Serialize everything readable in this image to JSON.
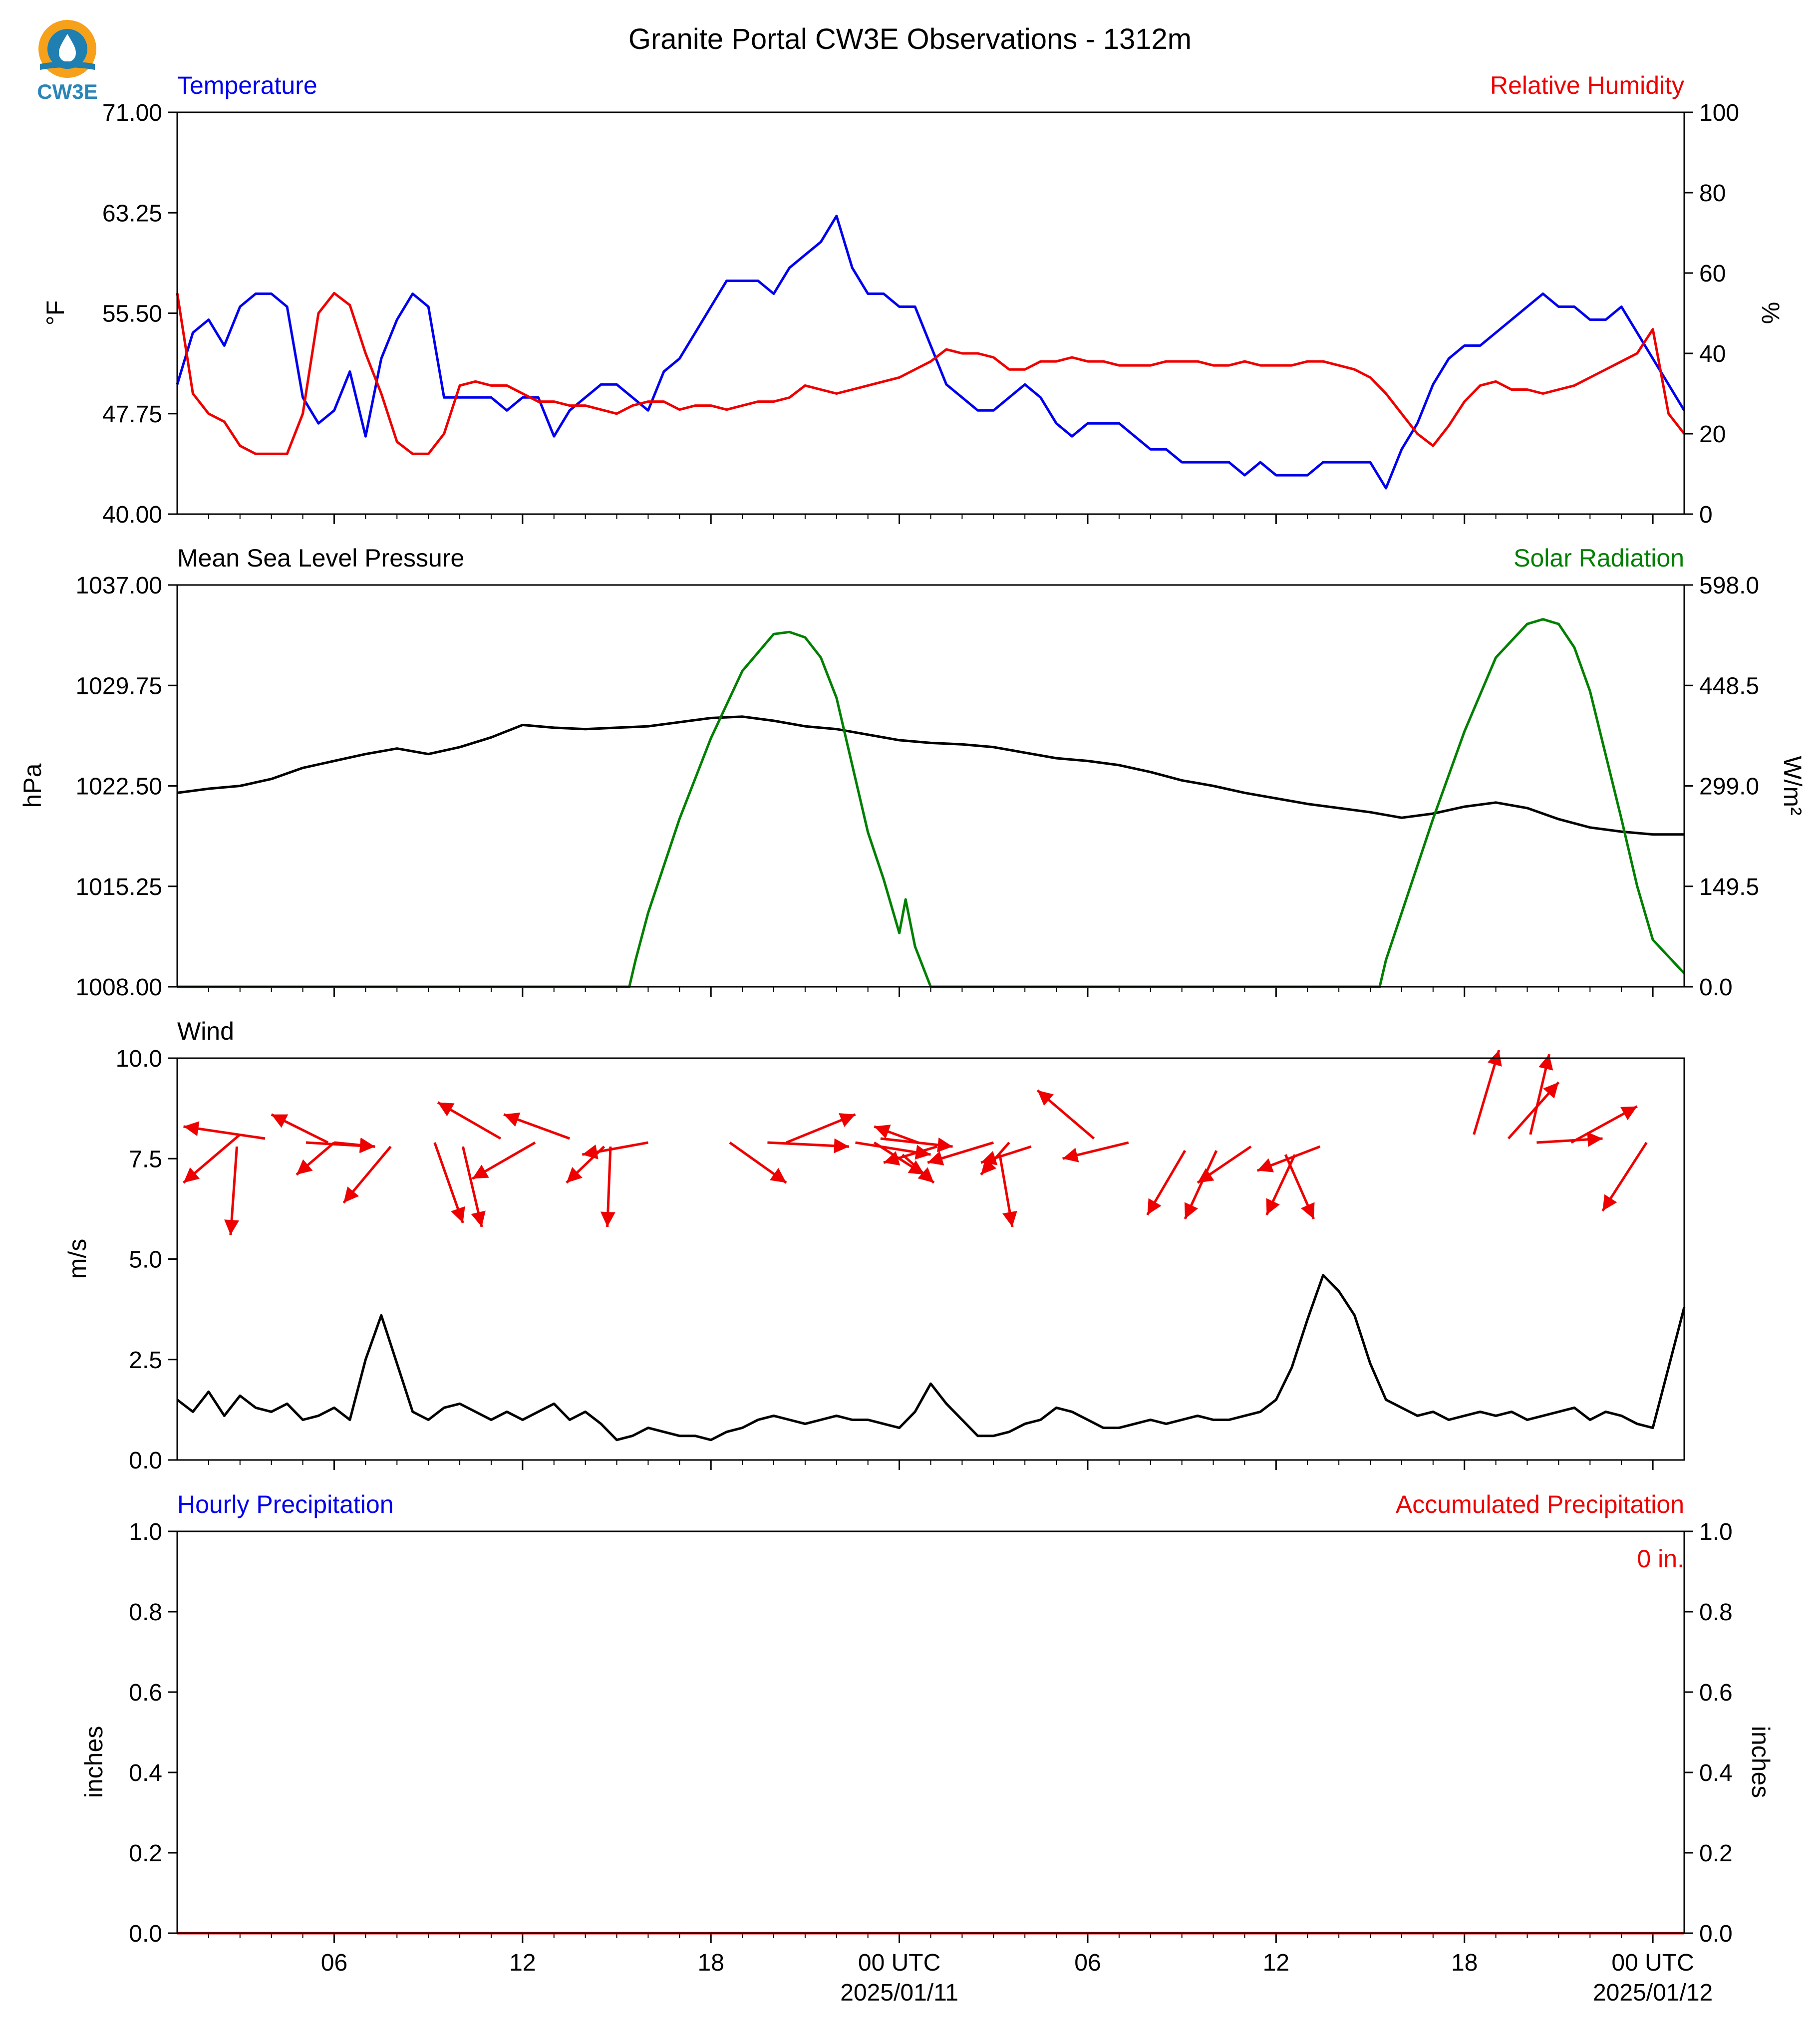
{
  "title": "Granite Portal CW3E Observations - 1312m",
  "logo": {
    "text": "CW3E",
    "icon": "cw3e-logo-icon",
    "colors": {
      "sun": "#f7a11a",
      "water": "#1f7fb0",
      "text": "#2a86b8"
    }
  },
  "chart_data": [
    {
      "type": "line",
      "id": "temp_rh",
      "x_unit": "hours since 2025/01/10 01 UTC",
      "x": [
        0,
        0.5,
        1,
        1.5,
        2,
        2.5,
        3,
        3.5,
        4,
        4.5,
        5,
        5.5,
        6,
        6.5,
        7,
        7.5,
        8,
        8.5,
        9,
        9.5,
        10,
        10.5,
        11,
        11.5,
        12,
        12.5,
        13,
        13.5,
        14,
        14.5,
        15,
        15.5,
        16,
        16.5,
        17,
        17.5,
        18,
        18.5,
        19,
        19.5,
        20,
        20.5,
        21,
        21.5,
        22,
        22.5,
        23,
        23.5,
        24,
        24.5,
        25,
        25.5,
        26,
        26.5,
        27,
        27.5,
        28,
        28.5,
        29,
        29.5,
        30,
        30.5,
        31,
        31.5,
        32,
        32.5,
        33,
        33.5,
        34,
        34.5,
        35,
        35.5,
        36,
        36.5,
        37,
        37.5,
        38,
        38.5,
        39,
        39.5,
        40,
        40.5,
        41,
        41.5,
        42,
        42.5,
        43,
        43.5,
        44,
        44.5,
        45,
        45.5,
        46,
        46.5,
        47,
        47.5,
        48
      ],
      "left_title": "Temperature",
      "right_title": "Relative Humidity",
      "ylabel_left": "°F",
      "ylabel_right": "%",
      "ylim_left": [
        40,
        71
      ],
      "ylim_right": [
        0,
        100
      ],
      "yticks_left": [
        "71.00",
        "63.25",
        "55.50",
        "47.75",
        "40.00"
      ],
      "yticks_right": [
        "100",
        "80",
        "60",
        "40",
        "20",
        "0"
      ],
      "series": [
        {
          "axis": "left",
          "color": "#0000ee",
          "values": [
            50,
            54,
            55,
            53,
            56,
            57,
            57,
            56,
            49,
            47,
            48,
            51,
            46,
            52,
            55,
            57,
            56,
            49,
            49,
            49,
            49,
            48,
            49,
            49,
            46,
            48,
            49,
            50,
            50,
            49,
            48,
            51,
            52,
            54,
            56,
            58,
            58,
            58,
            57,
            59,
            60,
            61,
            63,
            59,
            57,
            57,
            56,
            56,
            53,
            50,
            49,
            48,
            48,
            49,
            50,
            49,
            47,
            46,
            47,
            47,
            47,
            46,
            45,
            45,
            44,
            44,
            44,
            44,
            43,
            44,
            43,
            43,
            43,
            44,
            44,
            44,
            44,
            42,
            45,
            47,
            50,
            52,
            53,
            53,
            54,
            55,
            56,
            57,
            56,
            56,
            55,
            55,
            56,
            54,
            52,
            50,
            48
          ]
        },
        {
          "axis": "right",
          "color": "#ee0000",
          "values": [
            55,
            30,
            25,
            23,
            17,
            15,
            15,
            15,
            25,
            50,
            55,
            52,
            40,
            30,
            18,
            15,
            15,
            20,
            32,
            33,
            32,
            32,
            30,
            28,
            28,
            27,
            27,
            26,
            25,
            27,
            28,
            28,
            26,
            27,
            27,
            26,
            27,
            28,
            28,
            29,
            32,
            31,
            30,
            31,
            32,
            33,
            34,
            36,
            38,
            41,
            40,
            40,
            39,
            36,
            36,
            38,
            38,
            39,
            38,
            38,
            37,
            37,
            37,
            38,
            38,
            38,
            37,
            37,
            38,
            37,
            37,
            37,
            38,
            38,
            37,
            36,
            34,
            30,
            25,
            20,
            17,
            22,
            28,
            32,
            33,
            31,
            31,
            30,
            31,
            32,
            34,
            36,
            38,
            40,
            46,
            25,
            20
          ]
        }
      ]
    },
    {
      "type": "line",
      "id": "pressure_solar",
      "x_unit": "hours since 2025/01/10 01 UTC",
      "left_title": "Mean Sea Level Pressure",
      "right_title": "Solar Radiation",
      "ylabel_left": "hPa",
      "ylabel_right": "W/m²",
      "ylim_left": [
        1008,
        1037
      ],
      "ylim_right": [
        0,
        598
      ],
      "yticks_left": [
        "1037.00",
        "1029.75",
        "1022.50",
        "1015.25",
        "1008.00"
      ],
      "yticks_right": [
        "598.0",
        "448.5",
        "299.0",
        "149.5",
        "0.0"
      ],
      "series": [
        {
          "axis": "left",
          "color": "#000000",
          "x": [
            0,
            1,
            2,
            3,
            4,
            5,
            6,
            7,
            8,
            9,
            10,
            11,
            12,
            13,
            14,
            15,
            16,
            17,
            18,
            19,
            20,
            21,
            22,
            23,
            24,
            25,
            26,
            27,
            28,
            29,
            30,
            31,
            32,
            33,
            34,
            35,
            36,
            37,
            38,
            39,
            40,
            41,
            42,
            43,
            44,
            45,
            46,
            47,
            48
          ],
          "values": [
            1022,
            1022.3,
            1022.5,
            1023,
            1023.8,
            1024.3,
            1024.8,
            1025.2,
            1024.8,
            1025.3,
            1026,
            1026.9,
            1026.7,
            1026.6,
            1026.7,
            1026.8,
            1027.1,
            1027.4,
            1027.5,
            1027.2,
            1026.8,
            1026.6,
            1026.2,
            1025.8,
            1025.6,
            1025.5,
            1025.3,
            1024.9,
            1024.5,
            1024.3,
            1024,
            1023.5,
            1022.9,
            1022.5,
            1022,
            1021.6,
            1021.2,
            1020.9,
            1020.6,
            1020.2,
            1020.5,
            1021,
            1021.3,
            1020.9,
            1020.1,
            1019.5,
            1019.2,
            1019,
            1019
          ]
        },
        {
          "axis": "right",
          "color": "#008000",
          "x": [
            0,
            14.4,
            14.6,
            15,
            16,
            17,
            18,
            19,
            19.5,
            20,
            20.5,
            21,
            22,
            22.5,
            23,
            23.2,
            23.5,
            24,
            38.3,
            38.5,
            39,
            40,
            41,
            42,
            43,
            43.5,
            44,
            44.5,
            45,
            46,
            46.5,
            47,
            48
          ],
          "values": [
            0,
            0,
            40,
            110,
            250,
            370,
            470,
            525,
            528,
            520,
            490,
            430,
            230,
            160,
            80,
            130,
            60,
            0,
            0,
            40,
            110,
            250,
            380,
            490,
            540,
            547,
            540,
            505,
            440,
            250,
            150,
            70,
            20
          ]
        }
      ]
    },
    {
      "type": "line",
      "id": "wind",
      "x_unit": "hours since 2025/01/10 01 UTC",
      "left_title": "Wind",
      "ylabel_left": "m/s",
      "ylim_left": [
        0,
        10
      ],
      "yticks_left": [
        "10.0",
        "7.5",
        "5.0",
        "2.5",
        "0.0"
      ],
      "series": [
        {
          "axis": "left",
          "color": "#000000",
          "values": [
            1.5,
            1.2,
            1.7,
            1.1,
            1.6,
            1.3,
            1.2,
            1.4,
            1.0,
            1.1,
            1.3,
            1.0,
            2.5,
            3.6,
            2.4,
            1.2,
            1.0,
            1.3,
            1.4,
            1.2,
            1.0,
            1.2,
            1.0,
            1.2,
            1.4,
            1.0,
            1.2,
            0.9,
            0.5,
            0.6,
            0.8,
            0.7,
            0.6,
            0.6,
            0.5,
            0.7,
            0.8,
            1.0,
            1.1,
            1.0,
            0.9,
            1.0,
            1.1,
            1.0,
            1.0,
            0.9,
            0.8,
            1.2,
            1.9,
            1.4,
            1.0,
            0.6,
            0.6,
            0.7,
            0.9,
            1.0,
            1.3,
            1.2,
            1.0,
            0.8,
            0.8,
            0.9,
            1.0,
            0.9,
            1.0,
            1.1,
            1.0,
            1.0,
            1.1,
            1.2,
            1.5,
            2.3,
            3.5,
            4.6,
            4.2,
            3.6,
            2.4,
            1.5,
            1.3,
            1.1,
            1.2,
            1.0,
            1.1,
            1.2,
            1.1,
            1.2,
            1.0,
            1.1,
            1.2,
            1.3,
            1.0,
            1.2,
            1.1,
            0.9,
            0.8,
            2.3,
            3.8
          ]
        }
      ],
      "vectors": {
        "color": "#ee0000",
        "comment_free": true,
        "arrows": [
          {
            "x": 2.8,
            "y": 8.0,
            "dx": -2.6,
            "dy": 0.3
          },
          {
            "x": 2.0,
            "y": 8.1,
            "dx": -1.8,
            "dy": -1.2
          },
          {
            "x": 1.9,
            "y": 7.8,
            "dx": -0.2,
            "dy": -2.2
          },
          {
            "x": 4.8,
            "y": 7.9,
            "dx": -1.8,
            "dy": 0.7
          },
          {
            "x": 5.0,
            "y": 7.9,
            "dx": -1.2,
            "dy": -0.8
          },
          {
            "x": 4.1,
            "y": 7.9,
            "dx": 2.2,
            "dy": -0.1
          },
          {
            "x": 6.8,
            "y": 7.8,
            "dx": -1.5,
            "dy": -1.4
          },
          {
            "x": 5.0,
            "y": 7.9,
            "dx": 1.3,
            "dy": -0.1
          },
          {
            "x": 8.2,
            "y": 7.9,
            "dx": 0.9,
            "dy": -2.0
          },
          {
            "x": 10.3,
            "y": 8.0,
            "dx": -2.0,
            "dy": 0.9
          },
          {
            "x": 9.1,
            "y": 7.8,
            "dx": 0.6,
            "dy": -2.0
          },
          {
            "x": 11.4,
            "y": 7.9,
            "dx": -2.0,
            "dy": -0.9
          },
          {
            "x": 12.5,
            "y": 8.0,
            "dx": -2.1,
            "dy": 0.6
          },
          {
            "x": 13.6,
            "y": 7.8,
            "dx": -1.2,
            "dy": -0.9
          },
          {
            "x": 13.8,
            "y": 7.8,
            "dx": -0.1,
            "dy": -2.0
          },
          {
            "x": 15.0,
            "y": 7.9,
            "dx": -2.1,
            "dy": -0.3
          },
          {
            "x": 17.6,
            "y": 7.9,
            "dx": 1.8,
            "dy": -1.0
          },
          {
            "x": 19.4,
            "y": 7.9,
            "dx": 2.2,
            "dy": 0.7
          },
          {
            "x": 18.8,
            "y": 7.9,
            "dx": 2.6,
            "dy": -0.1
          },
          {
            "x": 21.6,
            "y": 7.9,
            "dx": 2.4,
            "dy": -0.3
          },
          {
            "x": 22.2,
            "y": 7.9,
            "dx": 1.6,
            "dy": -0.8
          },
          {
            "x": 23.6,
            "y": 7.9,
            "dx": -1.4,
            "dy": 0.4
          },
          {
            "x": 23.1,
            "y": 7.6,
            "dx": 1.0,
            "dy": -0.7
          },
          {
            "x": 22.4,
            "y": 8.0,
            "dx": 2.3,
            "dy": -0.2
          },
          {
            "x": 24.2,
            "y": 7.8,
            "dx": -1.7,
            "dy": -0.4
          },
          {
            "x": 26.0,
            "y": 7.9,
            "dx": -2.1,
            "dy": -0.5
          },
          {
            "x": 26.5,
            "y": 7.9,
            "dx": -0.9,
            "dy": -0.8
          },
          {
            "x": 26.2,
            "y": 7.6,
            "dx": 0.4,
            "dy": -1.8
          },
          {
            "x": 27.2,
            "y": 7.8,
            "dx": -1.6,
            "dy": -0.4
          },
          {
            "x": 29.2,
            "y": 8.0,
            "dx": -1.8,
            "dy": 1.2
          },
          {
            "x": 30.3,
            "y": 7.9,
            "dx": -2.1,
            "dy": -0.4
          },
          {
            "x": 32.1,
            "y": 7.7,
            "dx": -1.2,
            "dy": -1.6
          },
          {
            "x": 33.1,
            "y": 7.7,
            "dx": -1.0,
            "dy": -1.7
          },
          {
            "x": 34.2,
            "y": 7.8,
            "dx": -1.7,
            "dy": -0.9
          },
          {
            "x": 36.4,
            "y": 7.8,
            "dx": -2.0,
            "dy": -0.6
          },
          {
            "x": 35.6,
            "y": 7.6,
            "dx": -0.9,
            "dy": -1.5
          },
          {
            "x": 35.3,
            "y": 7.6,
            "dx": 0.9,
            "dy": -1.6
          },
          {
            "x": 41.3,
            "y": 8.1,
            "dx": 0.8,
            "dy": 2.1
          },
          {
            "x": 42.4,
            "y": 8.0,
            "dx": 1.6,
            "dy": 1.4
          },
          {
            "x": 43.1,
            "y": 8.1,
            "dx": 0.6,
            "dy": 2.0
          },
          {
            "x": 43.3,
            "y": 7.9,
            "dx": 2.1,
            "dy": 0.1
          },
          {
            "x": 44.4,
            "y": 7.9,
            "dx": 2.1,
            "dy": 0.9
          },
          {
            "x": 46.8,
            "y": 7.9,
            "dx": -1.4,
            "dy": -1.7
          }
        ]
      }
    },
    {
      "type": "line",
      "id": "precip",
      "x_unit": "hours since 2025/01/10 01 UTC",
      "left_title": "Hourly Precipitation",
      "right_title": "Accumulated Precipitation",
      "ylabel_left": "inches",
      "ylabel_right": "inches",
      "ylim_left": [
        0,
        1
      ],
      "ylim_right": [
        0,
        1
      ],
      "yticks_left": [
        "1.0",
        "0.8",
        "0.6",
        "0.4",
        "0.2",
        "0.0"
      ],
      "yticks_right": [
        "1.0",
        "0.8",
        "0.6",
        "0.4",
        "0.2",
        "0.0"
      ],
      "annotation": "0 in.",
      "series": [
        {
          "axis": "right",
          "color": "#ee0000",
          "x": [
            0,
            48
          ],
          "values": [
            0,
            0
          ]
        }
      ]
    }
  ],
  "x_axis": {
    "xlim": [
      0,
      48
    ],
    "major_ticks": [
      {
        "x": 5,
        "label": "06"
      },
      {
        "x": 11,
        "label": "12"
      },
      {
        "x": 17,
        "label": "18"
      },
      {
        "x": 23,
        "label": "00 UTC",
        "date": "2025/01/11"
      },
      {
        "x": 29,
        "label": "06"
      },
      {
        "x": 35,
        "label": "12"
      },
      {
        "x": 41,
        "label": "18"
      },
      {
        "x": 47,
        "label": "00 UTC",
        "date": "2025/01/12"
      }
    ]
  }
}
